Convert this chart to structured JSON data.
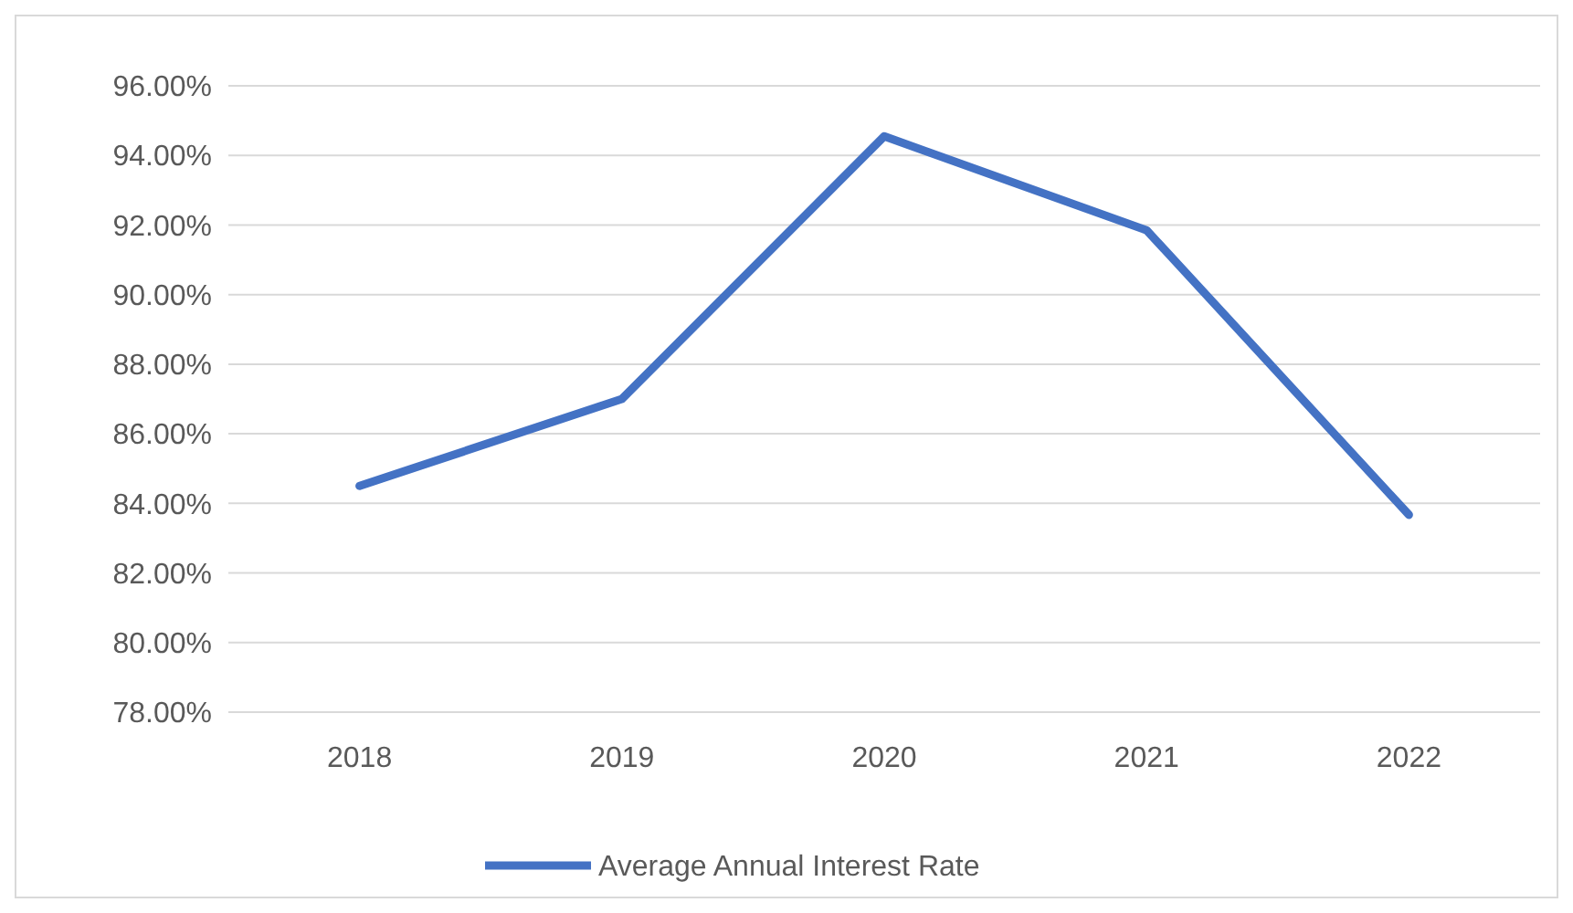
{
  "chart_data": {
    "type": "line",
    "categories": [
      "2018",
      "2019",
      "2020",
      "2021",
      "2022"
    ],
    "series": [
      {
        "name": "Average Annual Interest Rate",
        "color": "#4472c4",
        "values": [
          84.5,
          87.0,
          94.55,
          91.85,
          83.67
        ]
      }
    ],
    "ylim": [
      78,
      96
    ],
    "yticks": [
      {
        "value": 78,
        "label": "78.00%"
      },
      {
        "value": 80,
        "label": "80.00%"
      },
      {
        "value": 82,
        "label": "82.00%"
      },
      {
        "value": 84,
        "label": "84.00%"
      },
      {
        "value": 86,
        "label": "86.00%"
      },
      {
        "value": 88,
        "label": "88.00%"
      },
      {
        "value": 90,
        "label": "90.00%"
      },
      {
        "value": 92,
        "label": "92.00%"
      },
      {
        "value": 94,
        "label": "94.00%"
      },
      {
        "value": 96,
        "label": "96.00%"
      }
    ],
    "grid": "y",
    "legend": "bottom",
    "marker": "none",
    "line_style": "solid"
  }
}
